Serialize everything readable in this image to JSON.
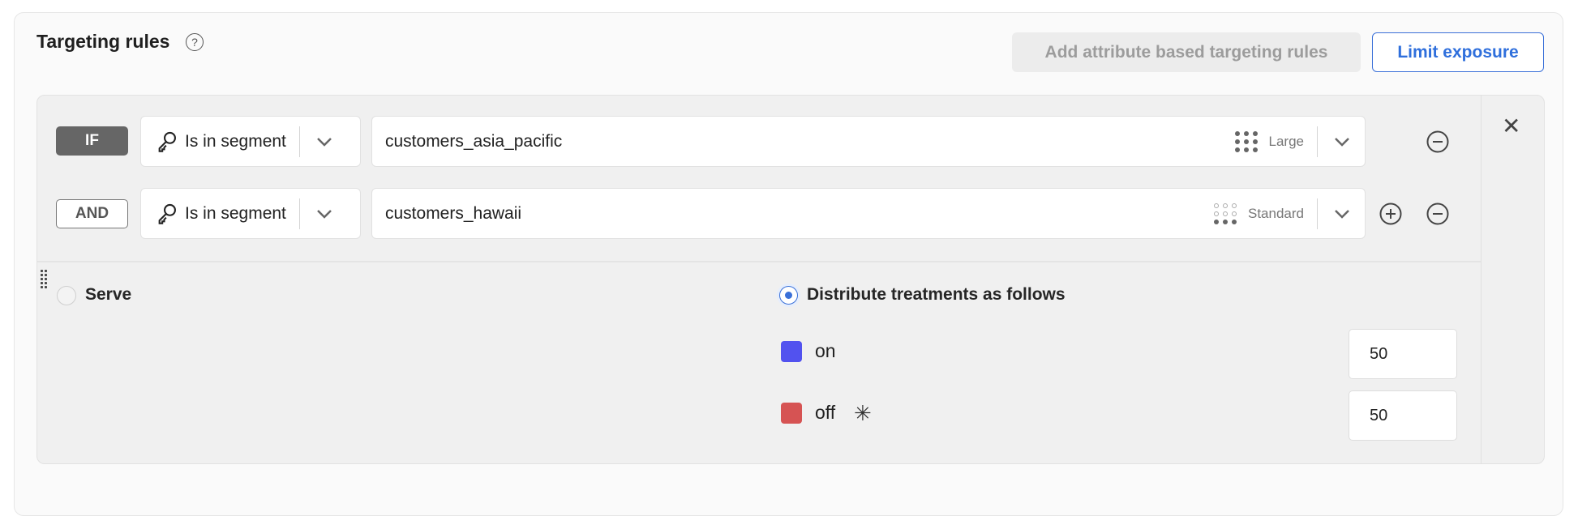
{
  "header": {
    "title": "Targeting rules",
    "help_icon": "question-circle-icon",
    "add_attribute_label": "Add attribute based targeting rules",
    "limit_exposure_label": "Limit exposure"
  },
  "conditions": [
    {
      "connector": "IF",
      "operator": "Is in segment",
      "value": "customers_asia_pacific",
      "size": "Large"
    },
    {
      "connector": "AND",
      "operator": "Is in segment",
      "value": "customers_hawaii",
      "size": "Standard"
    }
  ],
  "serve": {
    "serve_label": "Serve",
    "distribute_label": "Distribute treatments as follows",
    "selected": "distribute",
    "treatments": [
      {
        "name": "on",
        "color": "#5252ef",
        "percent": "50",
        "default": false
      },
      {
        "name": "off",
        "color": "#d65353",
        "percent": "50",
        "default": true
      }
    ]
  },
  "colors": {
    "accent": "#2f6fdc",
    "panel": "#f0f0f0"
  }
}
